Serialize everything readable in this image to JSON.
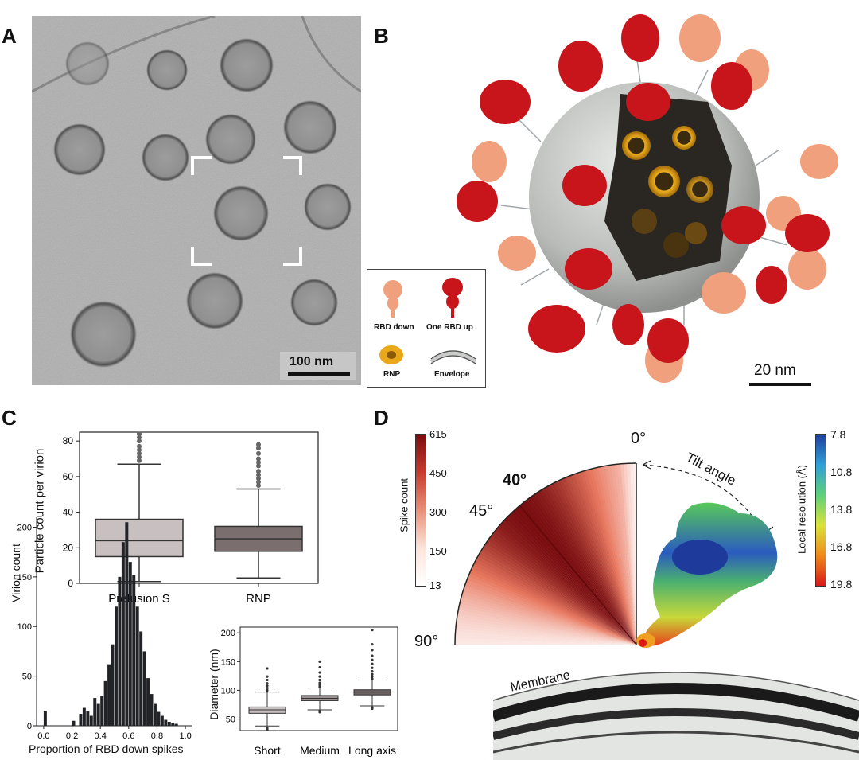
{
  "panels": {
    "A": {
      "label": "A",
      "scale_bar": "100 nm"
    },
    "B": {
      "label": "B",
      "scale_bar": "20 nm",
      "legend": {
        "rbd_down": "RBD down",
        "one_rbd_up": "One RBD up",
        "rnp": "RNP",
        "envelope": "Envelope"
      },
      "colors": {
        "rbd_down": "#f0a07c",
        "one_rbd_up": "#c8141b",
        "rnp": "#d99a16",
        "envelope": "#c9cbc9"
      }
    },
    "C": {
      "label": "C",
      "box_ylabel": "Particle count per virion",
      "hist_xlabel": "Proportion of RBD down spikes",
      "hist_ylabel": "Virion count",
      "diam_ylabel": "Diameter (nm)",
      "box_categories": [
        "Prefusion S",
        "RNP"
      ],
      "diam_categories": [
        "Short",
        "Medium",
        "Long axis"
      ]
    },
    "D": {
      "label": "D",
      "spike_cbar_label": "Spike count",
      "spike_ticks": [
        "615",
        "450",
        "300",
        "150",
        "13"
      ],
      "res_cbar_label": "Local resolution (Å)",
      "res_ticks": [
        "7.8",
        "10.8",
        "13.8",
        "16.8",
        "19.8"
      ],
      "angle_0": "0°",
      "angle_40": "40",
      "angle_40_sup": "o",
      "angle_45": "45°",
      "angle_90": "90°",
      "tilt_label": "Tilt angle",
      "membrane_label": "Membrane"
    }
  },
  "chart_data": [
    {
      "type": "box",
      "title": "",
      "ylabel": "Particle count per virion",
      "categories": [
        "Prefusion S",
        "RNP"
      ],
      "ylim": [
        0,
        85
      ],
      "yticks": [
        0,
        20,
        40,
        60,
        80
      ],
      "boxes": [
        {
          "name": "Prefusion S",
          "whisker_low": 1,
          "q1": 15,
          "median": 24,
          "q3": 36,
          "whisker_high": 67,
          "outliers": [
            69,
            71,
            73,
            75,
            77,
            80,
            82,
            84
          ],
          "color": "#c7bfc0"
        },
        {
          "name": "RNP",
          "whisker_low": 3,
          "q1": 18,
          "median": 25,
          "q3": 32,
          "whisker_high": 53,
          "outliers": [
            55,
            57,
            59,
            61,
            63,
            66,
            68,
            70,
            73,
            76,
            78
          ],
          "color": "#7a6e6f"
        }
      ]
    },
    {
      "type": "bar",
      "title": "",
      "xlabel": "Proportion of RBD down spikes",
      "ylabel": "Virion count",
      "xlim": [
        -0.05,
        1.05
      ],
      "ylim": [
        0,
        210
      ],
      "xticks": [
        0.0,
        0.2,
        0.4,
        0.6,
        0.8,
        1.0
      ],
      "yticks": [
        0,
        50,
        100,
        150,
        200
      ],
      "bin_width": 0.025,
      "bins": [
        [
          0.0,
          15
        ],
        [
          0.2,
          5
        ],
        [
          0.25,
          12
        ],
        [
          0.275,
          18
        ],
        [
          0.3,
          15
        ],
        [
          0.325,
          10
        ],
        [
          0.35,
          28
        ],
        [
          0.375,
          22
        ],
        [
          0.4,
          30
        ],
        [
          0.425,
          45
        ],
        [
          0.45,
          62
        ],
        [
          0.475,
          82
        ],
        [
          0.5,
          120
        ],
        [
          0.525,
          150
        ],
        [
          0.55,
          185
        ],
        [
          0.575,
          205
        ],
        [
          0.6,
          165
        ],
        [
          0.625,
          152
        ],
        [
          0.65,
          120
        ],
        [
          0.675,
          95
        ],
        [
          0.7,
          75
        ],
        [
          0.725,
          48
        ],
        [
          0.75,
          32
        ],
        [
          0.775,
          22
        ],
        [
          0.8,
          14
        ],
        [
          0.825,
          10
        ],
        [
          0.85,
          6
        ],
        [
          0.875,
          4
        ],
        [
          0.9,
          3
        ],
        [
          0.925,
          2
        ]
      ],
      "color": "#222326"
    },
    {
      "type": "box",
      "title": "",
      "ylabel": "Diameter (nm)",
      "categories": [
        "Short",
        "Medium",
        "Long axis"
      ],
      "ylim": [
        30,
        210
      ],
      "yticks": [
        50,
        100,
        150,
        200
      ],
      "boxes": [
        {
          "name": "Short",
          "whisker_low": 38,
          "q1": 60,
          "median": 66,
          "q3": 71,
          "whisker_high": 97,
          "outliers": [
            100,
            104,
            108,
            112,
            118,
            124,
            138,
            32,
            35
          ],
          "color": "#c7bfc0"
        },
        {
          "name": "Medium",
          "whisker_low": 66,
          "q1": 82,
          "median": 86,
          "q3": 91,
          "whisker_high": 104,
          "outliers": [
            106,
            109,
            113,
            118,
            124,
            131,
            140,
            150,
            62,
            64
          ],
          "color": "#9c9192"
        },
        {
          "name": "Long axis",
          "whisker_low": 73,
          "q1": 92,
          "median": 97,
          "q3": 101,
          "whisker_high": 118,
          "outliers": [
            120,
            124,
            128,
            133,
            139,
            146,
            153,
            160,
            170,
            180,
            205,
            70,
            68
          ],
          "color": "#6d6162"
        }
      ]
    },
    {
      "type": "fan",
      "title": "",
      "colorbar_label": "Spike count",
      "colorbar_range": [
        13,
        615
      ],
      "angle_range": [
        0,
        90
      ],
      "peak_angle": 40
    }
  ]
}
